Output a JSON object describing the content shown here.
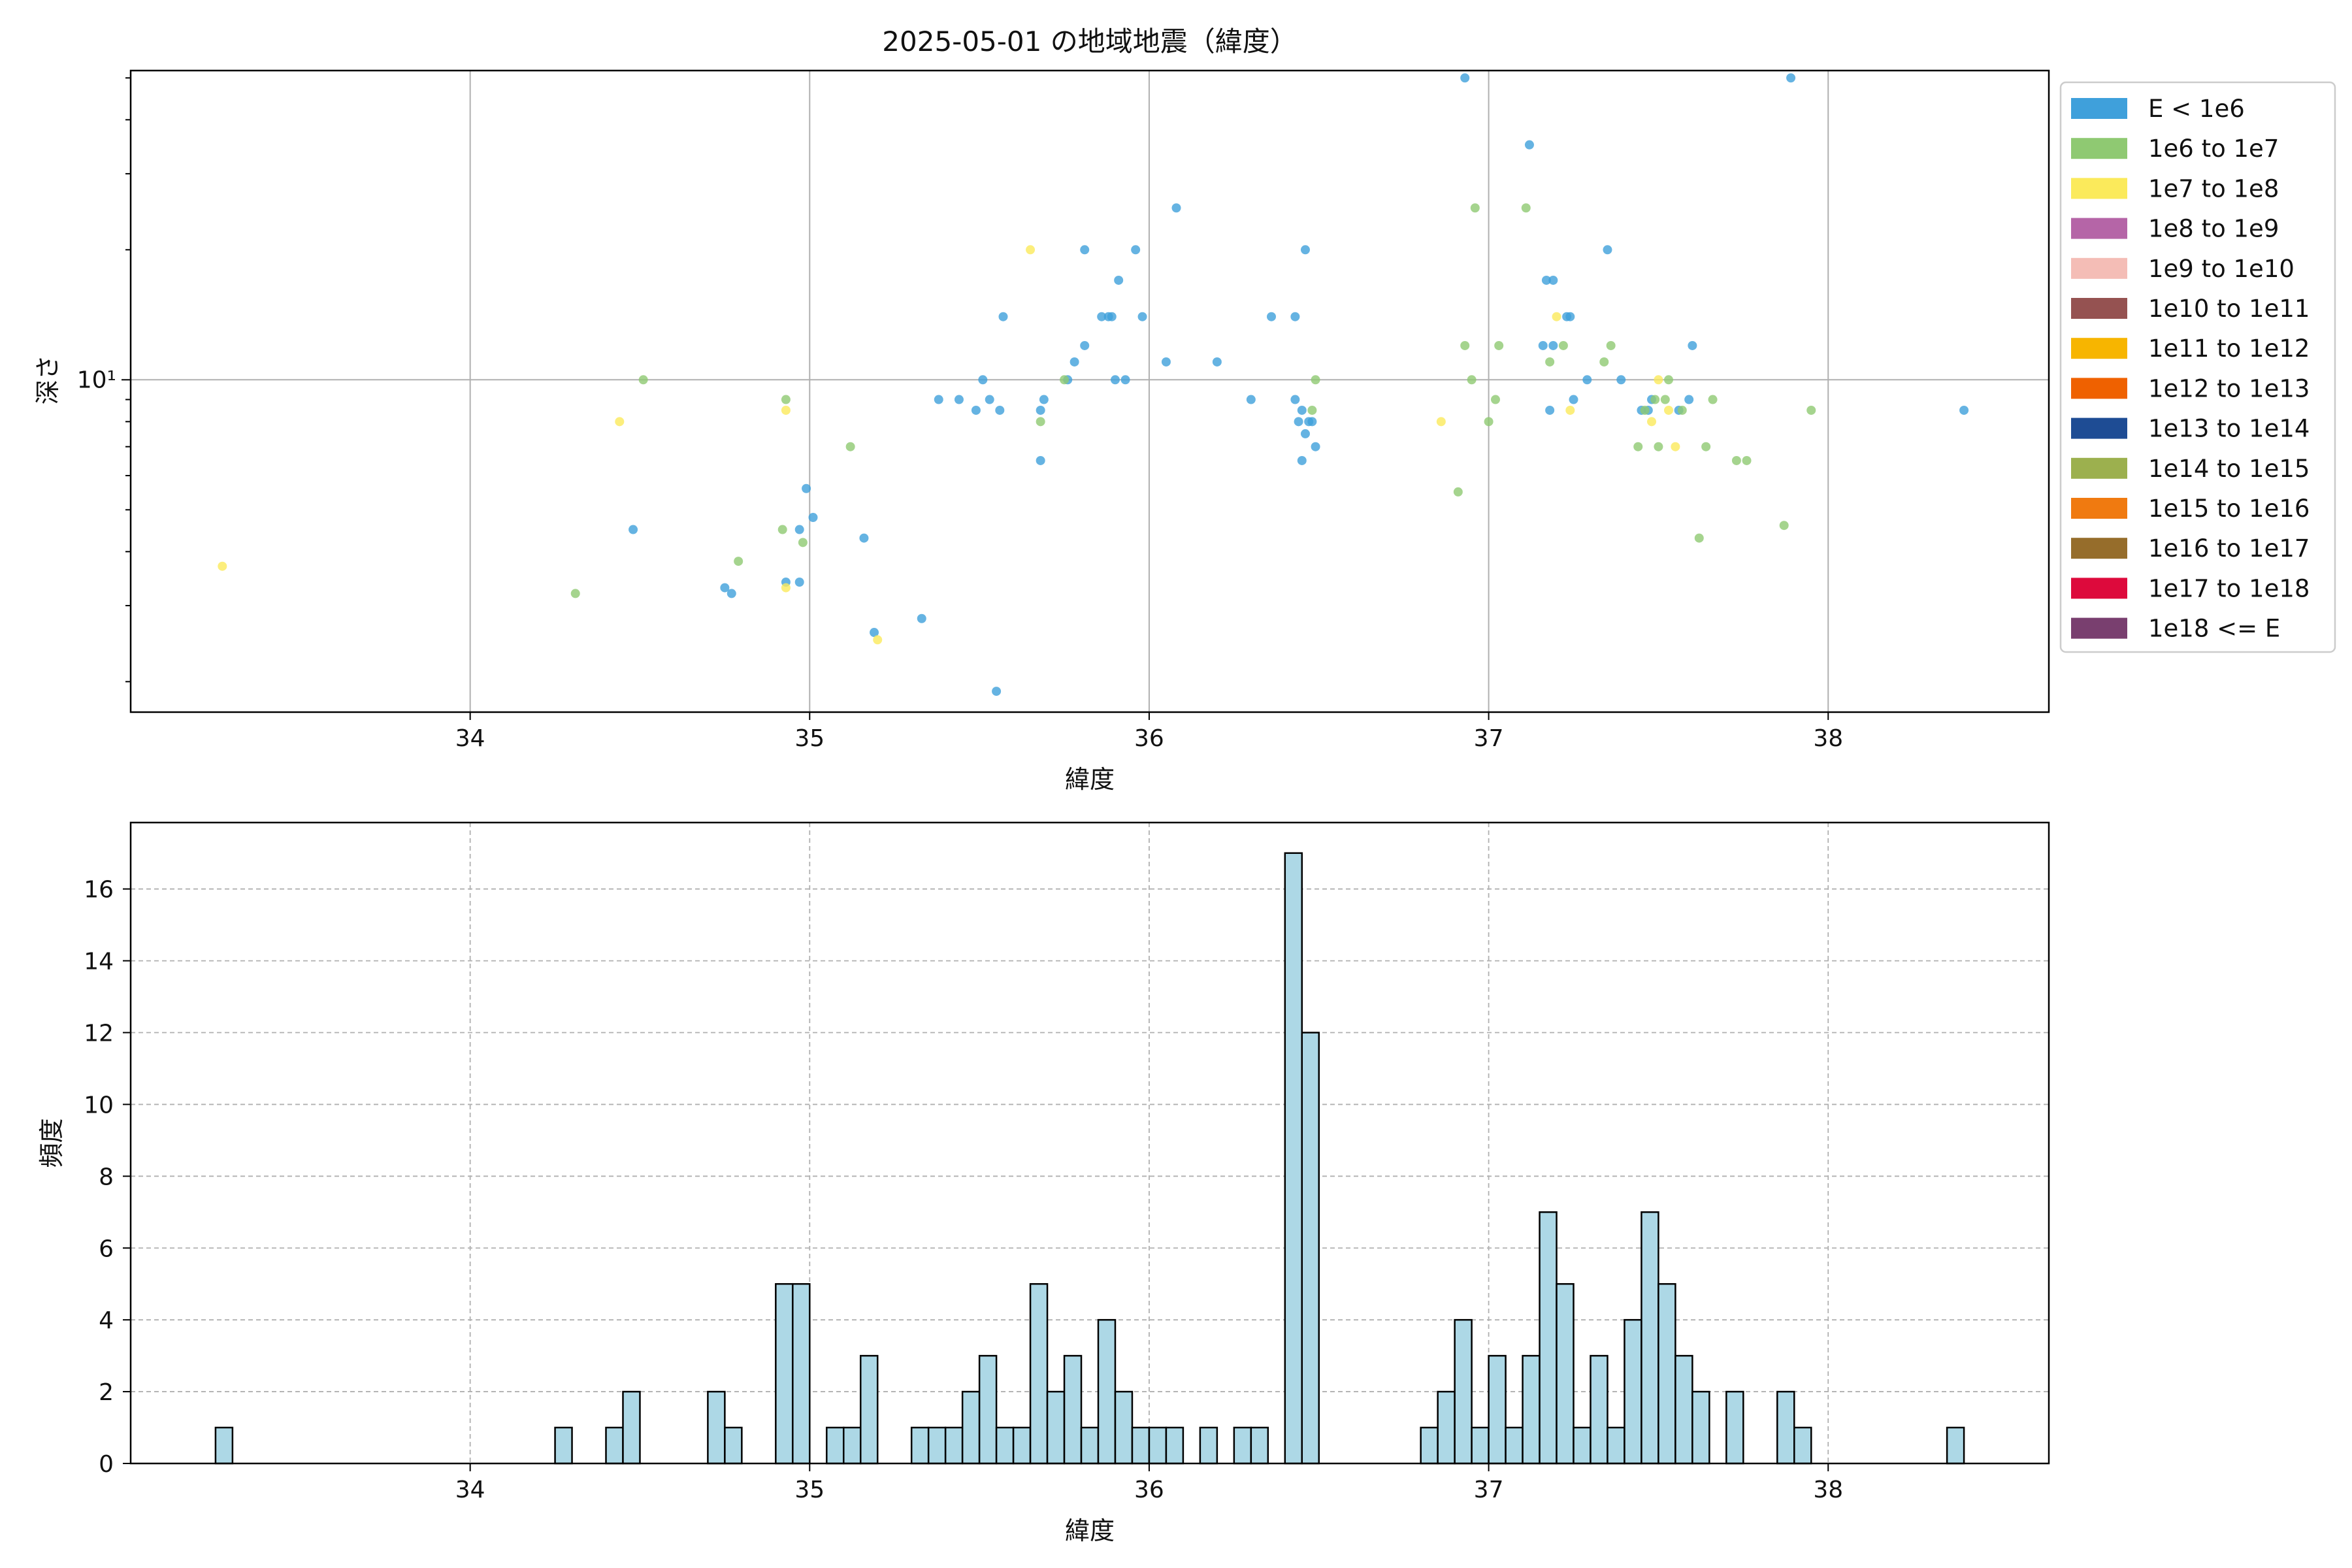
{
  "chart_data": [
    {
      "type": "scatter",
      "title": "2025-05-01 の地域地震（緯度）",
      "xlabel": "緯度",
      "ylabel": "深さ",
      "xlim": [
        33.0,
        38.65
      ],
      "ylim": [
        1.7,
        52
      ],
      "yscale": "log",
      "grid": true,
      "legend_placement": "outside right",
      "x_ticks": [
        "34",
        "35",
        "36",
        "37",
        "38"
      ],
      "y_ticks": [
        "10¹"
      ],
      "legend": [
        {
          "label": "E < 1e6",
          "color": "#3fa0db"
        },
        {
          "label": "1e6 to 1e7",
          "color": "#8fc972"
        },
        {
          "label": "1e7 to 1e8",
          "color": "#fbea5b"
        },
        {
          "label": "1e8 to 1e9",
          "color": "#b565a7"
        },
        {
          "label": "1e9 to 1e10",
          "color": "#f4bdb6"
        },
        {
          "label": "1e10 to 1e11",
          "color": "#955251"
        },
        {
          "label": "1e11 to 1e12",
          "color": "#f7b500"
        },
        {
          "label": "1e12 to 1e13",
          "color": "#ef6100"
        },
        {
          "label": "1e13 to 1e14",
          "color": "#1e4c94"
        },
        {
          "label": "1e14 to 1e15",
          "color": "#9cb04e"
        },
        {
          "label": "1e15 to 1e16",
          "color": "#f07a10"
        },
        {
          "label": "1e16 to 1e17",
          "color": "#966d2b"
        },
        {
          "label": "1e17 to 1e18",
          "color": "#dd0a3c"
        },
        {
          "label": "1e18 <= E",
          "color": "#793f6f"
        }
      ],
      "series": [
        {
          "name": "E < 1e6",
          "color": "#3fa0db",
          "points": [
            [
              34.48,
              4.5
            ],
            [
              34.75,
              3.3
            ],
            [
              34.77,
              3.2
            ],
            [
              34.93,
              3.4
            ],
            [
              34.97,
              3.4
            ],
            [
              34.97,
              4.5
            ],
            [
              34.99,
              5.6
            ],
            [
              35.01,
              4.8
            ],
            [
              35.16,
              4.3
            ],
            [
              35.19,
              2.6
            ],
            [
              35.33,
              2.8
            ],
            [
              35.38,
              9.0
            ],
            [
              35.44,
              9.0
            ],
            [
              35.49,
              8.5
            ],
            [
              35.51,
              10.0
            ],
            [
              35.53,
              9.0
            ],
            [
              35.55,
              1.9
            ],
            [
              35.56,
              8.5
            ],
            [
              35.57,
              14.0
            ],
            [
              35.68,
              8.5
            ],
            [
              35.68,
              6.5
            ],
            [
              35.69,
              9.0
            ],
            [
              35.76,
              10.0
            ],
            [
              35.78,
              11.0
            ],
            [
              35.81,
              20.0
            ],
            [
              35.81,
              12.0
            ],
            [
              35.86,
              14.0
            ],
            [
              35.88,
              14.0
            ],
            [
              35.89,
              14.0
            ],
            [
              35.9,
              10.0
            ],
            [
              35.91,
              17.0
            ],
            [
              35.93,
              10.0
            ],
            [
              35.96,
              20.0
            ],
            [
              35.98,
              14.0
            ],
            [
              36.05,
              11.0
            ],
            [
              36.08,
              25.0
            ],
            [
              36.2,
              11.0
            ],
            [
              36.3,
              9.0
            ],
            [
              36.36,
              14.0
            ],
            [
              36.43,
              9.0
            ],
            [
              36.43,
              14.0
            ],
            [
              36.44,
              8.0
            ],
            [
              36.45,
              8.5
            ],
            [
              36.45,
              6.5
            ],
            [
              36.46,
              20.0
            ],
            [
              36.46,
              7.5
            ],
            [
              36.47,
              8.0
            ],
            [
              36.48,
              8.0
            ],
            [
              36.49,
              7.0
            ],
            [
              36.93,
              50.0
            ],
            [
              37.12,
              35.0
            ],
            [
              37.16,
              12.0
            ],
            [
              37.17,
              17.0
            ],
            [
              37.18,
              8.5
            ],
            [
              37.19,
              17.0
            ],
            [
              37.19,
              12.0
            ],
            [
              37.23,
              14.0
            ],
            [
              37.24,
              14.0
            ],
            [
              37.25,
              9.0
            ],
            [
              37.29,
              10.0
            ],
            [
              37.35,
              20.0
            ],
            [
              37.39,
              10.0
            ],
            [
              37.45,
              8.5
            ],
            [
              37.47,
              8.5
            ],
            [
              37.48,
              9.0
            ],
            [
              37.56,
              8.5
            ],
            [
              37.59,
              9.0
            ],
            [
              37.6,
              12.0
            ],
            [
              37.89,
              50.0
            ],
            [
              38.4,
              8.5
            ]
          ]
        },
        {
          "name": "1e6 to 1e7",
          "color": "#8fc972",
          "points": [
            [
              34.31,
              3.2
            ],
            [
              34.51,
              10.0
            ],
            [
              34.79,
              3.8
            ],
            [
              34.92,
              4.5
            ],
            [
              34.93,
              9.0
            ],
            [
              34.98,
              4.2
            ],
            [
              35.12,
              7.0
            ],
            [
              35.68,
              8.0
            ],
            [
              35.75,
              10.0
            ],
            [
              36.48,
              8.5
            ],
            [
              36.49,
              10.0
            ],
            [
              36.91,
              5.5
            ],
            [
              36.93,
              12.0
            ],
            [
              36.95,
              10.0
            ],
            [
              36.96,
              25.0
            ],
            [
              37.0,
              8.0
            ],
            [
              37.02,
              9.0
            ],
            [
              37.03,
              12.0
            ],
            [
              37.11,
              25.0
            ],
            [
              37.18,
              11.0
            ],
            [
              37.22,
              12.0
            ],
            [
              37.34,
              11.0
            ],
            [
              37.36,
              12.0
            ],
            [
              37.44,
              7.0
            ],
            [
              37.46,
              8.5
            ],
            [
              37.49,
              9.0
            ],
            [
              37.5,
              7.0
            ],
            [
              37.52,
              9.0
            ],
            [
              37.53,
              10.0
            ],
            [
              37.57,
              8.5
            ],
            [
              37.62,
              4.3
            ],
            [
              37.64,
              7.0
            ],
            [
              37.66,
              9.0
            ],
            [
              37.73,
              6.5
            ],
            [
              37.76,
              6.5
            ],
            [
              37.87,
              4.6
            ],
            [
              37.95,
              8.5
            ]
          ]
        },
        {
          "name": "1e7 to 1e8",
          "color": "#fbea5b",
          "points": [
            [
              33.27,
              3.7
            ],
            [
              34.44,
              8.0
            ],
            [
              34.93,
              8.5
            ],
            [
              34.93,
              3.3
            ],
            [
              35.2,
              2.5
            ],
            [
              35.65,
              20.0
            ],
            [
              36.86,
              8.0
            ],
            [
              37.2,
              14.0
            ],
            [
              37.24,
              8.5
            ],
            [
              37.48,
              8.0
            ],
            [
              37.5,
              10.0
            ],
            [
              37.53,
              8.5
            ],
            [
              37.55,
              7.0
            ]
          ]
        }
      ]
    },
    {
      "type": "bar",
      "title": "",
      "xlabel": "緯度",
      "ylabel": "頻度",
      "xlim": [
        33.0,
        38.65
      ],
      "ylim": [
        0,
        17.85
      ],
      "grid": true,
      "bar_color": "#add8e6",
      "x_ticks": [
        "34",
        "35",
        "36",
        "37",
        "38"
      ],
      "y_ticks": [
        "0",
        "2",
        "4",
        "6",
        "8",
        "10",
        "12",
        "14",
        "16"
      ],
      "bin_width": 0.05,
      "bins": [
        [
          33.25,
          1
        ],
        [
          34.25,
          1
        ],
        [
          34.4,
          1
        ],
        [
          34.45,
          2
        ],
        [
          34.7,
          2
        ],
        [
          34.75,
          1
        ],
        [
          34.9,
          5
        ],
        [
          34.95,
          5
        ],
        [
          35.05,
          1
        ],
        [
          35.1,
          1
        ],
        [
          35.15,
          3
        ],
        [
          35.3,
          1
        ],
        [
          35.35,
          1
        ],
        [
          35.4,
          1
        ],
        [
          35.45,
          2
        ],
        [
          35.5,
          3
        ],
        [
          35.55,
          1
        ],
        [
          35.6,
          1
        ],
        [
          35.65,
          5
        ],
        [
          35.7,
          2
        ],
        [
          35.75,
          3
        ],
        [
          35.8,
          1
        ],
        [
          35.85,
          4
        ],
        [
          35.9,
          2
        ],
        [
          35.95,
          1
        ],
        [
          36.0,
          1
        ],
        [
          36.05,
          1
        ],
        [
          36.15,
          1
        ],
        [
          36.25,
          1
        ],
        [
          36.3,
          1
        ],
        [
          36.4,
          17
        ],
        [
          36.45,
          12
        ],
        [
          36.8,
          1
        ],
        [
          36.85,
          2
        ],
        [
          36.9,
          4
        ],
        [
          36.95,
          1
        ],
        [
          37.0,
          3
        ],
        [
          37.05,
          1
        ],
        [
          37.1,
          3
        ],
        [
          37.15,
          7
        ],
        [
          37.2,
          5
        ],
        [
          37.25,
          1
        ],
        [
          37.3,
          3
        ],
        [
          37.35,
          1
        ],
        [
          37.4,
          4
        ],
        [
          37.45,
          7
        ],
        [
          37.5,
          5
        ],
        [
          37.55,
          3
        ],
        [
          37.6,
          2
        ],
        [
          37.7,
          2
        ],
        [
          37.85,
          2
        ],
        [
          37.9,
          1
        ],
        [
          38.35,
          1
        ]
      ]
    }
  ]
}
